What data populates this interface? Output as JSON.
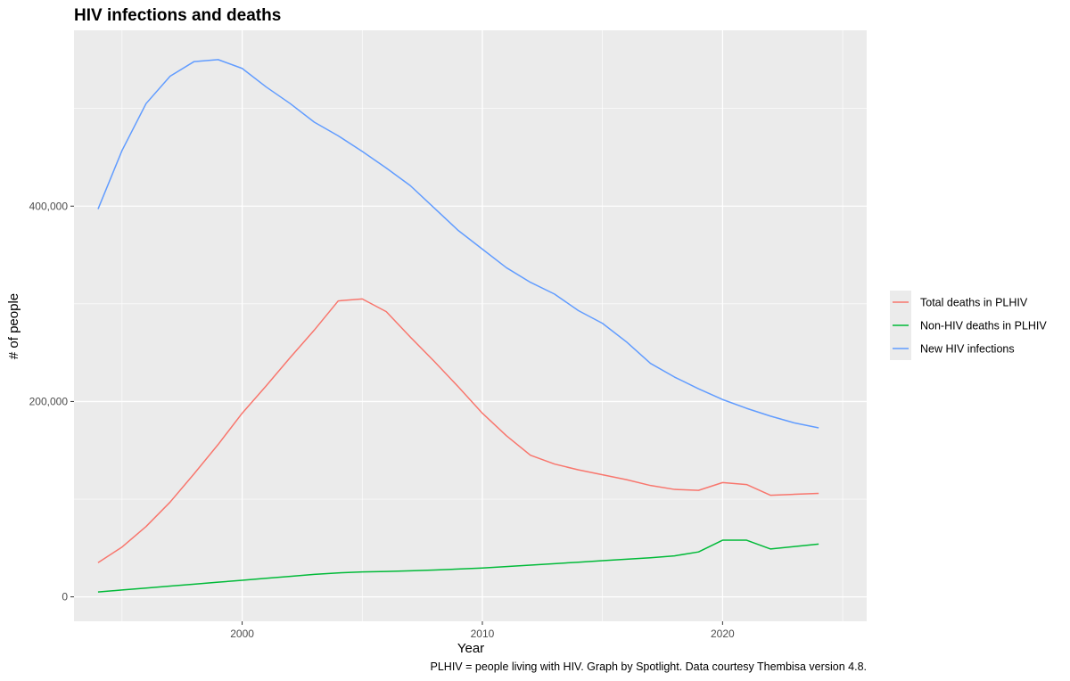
{
  "chart_data": {
    "type": "line",
    "title": "HIV infections and deaths",
    "xlabel": "Year",
    "ylabel": "# of people",
    "caption": "PLHIV = people living with HIV. Graph by Spotlight. Data courtesy Thembisa version 4.8.",
    "xlim": [
      1993,
      2026
    ],
    "ylim": [
      -25000,
      580000
    ],
    "x_ticks": [
      2000,
      2010,
      2020
    ],
    "x_minor_ticks": [
      1995,
      2005,
      2015,
      2025
    ],
    "y_ticks": [
      0,
      200000,
      400000
    ],
    "y_tick_labels": [
      "0",
      "200,000",
      "400,000"
    ],
    "y_minor_ticks": [
      100000,
      300000,
      500000
    ],
    "grid": true,
    "legend_position": "right",
    "x": [
      1994,
      1995,
      1996,
      1997,
      1998,
      1999,
      2000,
      2001,
      2002,
      2003,
      2004,
      2005,
      2006,
      2007,
      2008,
      2009,
      2010,
      2011,
      2012,
      2013,
      2014,
      2015,
      2016,
      2017,
      2018,
      2019,
      2020,
      2021,
      2022,
      2023,
      2024
    ],
    "series": [
      {
        "name": "Total deaths in PLHIV",
        "color": "#F8766D",
        "values": [
          35000,
          51000,
          72000,
          97000,
          126000,
          156000,
          188000,
          216000,
          245000,
          273000,
          303000,
          305000,
          292000,
          266000,
          241000,
          215000,
          188000,
          165000,
          145000,
          136000,
          130000,
          125000,
          120000,
          114000,
          110000,
          109000,
          117000,
          115000,
          104000,
          105000,
          106000
        ]
      },
      {
        "name": "Non-HIV deaths in PLHIV",
        "color": "#00BA38",
        "values": [
          5000,
          7000,
          9000,
          11000,
          13000,
          15000,
          17000,
          19000,
          21000,
          23000,
          24500,
          25500,
          26000,
          26700,
          27500,
          28500,
          29500,
          31000,
          32500,
          34000,
          35500,
          37000,
          38500,
          40000,
          42000,
          46000,
          58000,
          58000,
          49000,
          51500,
          54000
        ]
      },
      {
        "name": "New HIV infections",
        "color": "#619CFF",
        "values": [
          397000,
          457000,
          505000,
          533000,
          548000,
          550000,
          541000,
          522000,
          505000,
          486000,
          472000,
          456000,
          439000,
          421000,
          398000,
          375000,
          356000,
          337000,
          322000,
          310000,
          293000,
          280000,
          261000,
          239000,
          225000,
          213000,
          202000,
          193000,
          185000,
          178000,
          173000
        ]
      }
    ]
  }
}
